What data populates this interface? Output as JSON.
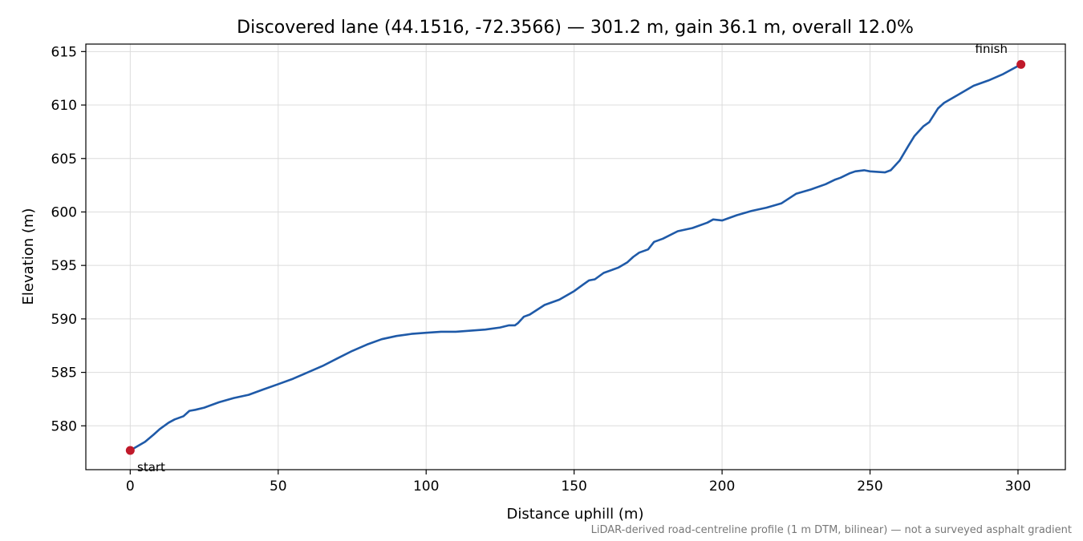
{
  "chart_data": {
    "type": "line",
    "title": "Discovered lane (44.1516, -72.3566) — 301.2 m, gain 36.1 m, overall 12.0%",
    "xlabel": "Distance uphill (m)",
    "ylabel": "Elevation (m)",
    "xlim": [
      -15,
      316
    ],
    "ylim": [
      575.9,
      615.7
    ],
    "xticks": [
      0,
      50,
      100,
      150,
      200,
      250,
      300
    ],
    "yticks": [
      580,
      585,
      590,
      595,
      600,
      605,
      610,
      615
    ],
    "grid": true,
    "line_color": "#1f5aa8",
    "marker_color": "#c0192a",
    "series": [
      {
        "x": [
          0,
          5,
          8,
          10,
          13,
          15,
          18,
          20,
          22,
          25,
          30,
          35,
          40,
          45,
          50,
          55,
          60,
          65,
          70,
          75,
          80,
          85,
          90,
          95,
          100,
          105,
          110,
          115,
          120,
          125,
          128,
          130,
          131,
          133,
          135,
          140,
          145,
          150,
          153,
          155,
          157,
          160,
          163,
          165,
          168,
          170,
          172,
          175,
          177,
          180,
          185,
          190,
          195,
          197,
          200,
          205,
          210,
          215,
          220,
          225,
          230,
          235,
          238,
          240,
          243,
          245,
          248,
          250,
          255,
          257,
          260,
          263,
          265,
          268,
          270,
          273,
          275,
          280,
          285,
          290,
          295,
          301
        ],
        "y": [
          577.7,
          578.5,
          579.2,
          579.7,
          580.3,
          580.6,
          580.9,
          581.4,
          581.5,
          581.7,
          582.2,
          582.6,
          582.9,
          583.4,
          583.9,
          584.4,
          585.0,
          585.6,
          586.3,
          587.0,
          587.6,
          588.1,
          588.4,
          588.6,
          588.7,
          588.8,
          588.8,
          588.9,
          589.0,
          589.2,
          589.4,
          589.4,
          589.6,
          590.2,
          590.4,
          591.3,
          591.8,
          592.6,
          593.2,
          593.6,
          593.7,
          594.3,
          594.6,
          594.8,
          595.3,
          595.8,
          596.2,
          596.5,
          597.2,
          597.5,
          598.2,
          598.5,
          599.0,
          599.3,
          599.2,
          599.7,
          600.1,
          600.4,
          600.8,
          601.7,
          602.1,
          602.6,
          603.0,
          603.2,
          603.6,
          603.8,
          603.9,
          603.8,
          603.7,
          603.9,
          604.8,
          606.2,
          607.1,
          608.0,
          608.4,
          609.7,
          610.2,
          611.0,
          611.8,
          612.3,
          612.9,
          613.8
        ]
      }
    ],
    "annotations": [
      {
        "text": "start",
        "x": 0,
        "y": 577.7
      },
      {
        "text": "finish",
        "x": 301,
        "y": 613.8
      }
    ],
    "footnote": "LiDAR-derived road-centreline profile (1 m DTM, bilinear) — not a surveyed asphalt gradient"
  }
}
